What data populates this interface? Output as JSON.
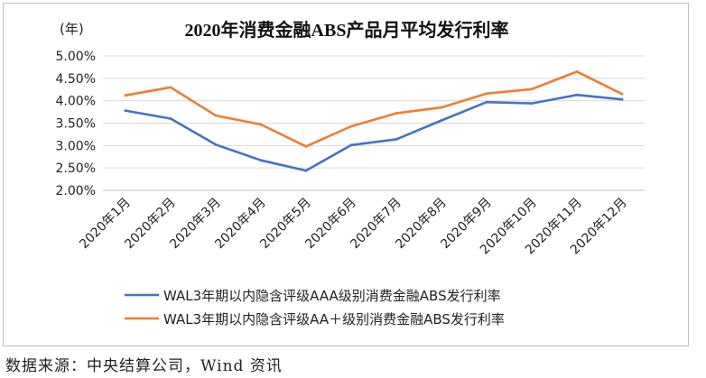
{
  "chart_data": {
    "type": "line",
    "title": "2020年消费金融ABS产品月平均发行利率",
    "y_unit_label": "(年)",
    "categories": [
      "2020年1月",
      "2020年2月",
      "2020年3月",
      "2020年4月",
      "2020年5月",
      "2020年6月",
      "2020年7月",
      "2020年8月",
      "2020年9月",
      "2020年10月",
      "2020年11月",
      "2020年12月"
    ],
    "ylim": [
      2.0,
      5.0
    ],
    "y_ticks": [
      "2.00%",
      "2.50%",
      "3.00%",
      "3.50%",
      "4.00%",
      "4.50%",
      "5.00%"
    ],
    "grid": true,
    "legend_position": "bottom",
    "series": [
      {
        "name": "WAL3年期以内隐含评级AAA级别消费金融ABS发行利率",
        "color": "#4472c4",
        "values": [
          3.78,
          3.6,
          3.02,
          2.67,
          2.44,
          3.01,
          3.14,
          3.56,
          3.97,
          3.94,
          4.13,
          4.03
        ]
      },
      {
        "name": "WAL3年期以内隐含评级AA＋级别消费金融ABS发行利率",
        "color": "#ed7d31",
        "values": [
          4.12,
          4.3,
          3.67,
          3.47,
          2.98,
          3.43,
          3.72,
          3.85,
          4.16,
          4.26,
          4.65,
          4.15
        ]
      }
    ]
  },
  "source_note": "数据来源：中央结算公司，Wind 资讯"
}
